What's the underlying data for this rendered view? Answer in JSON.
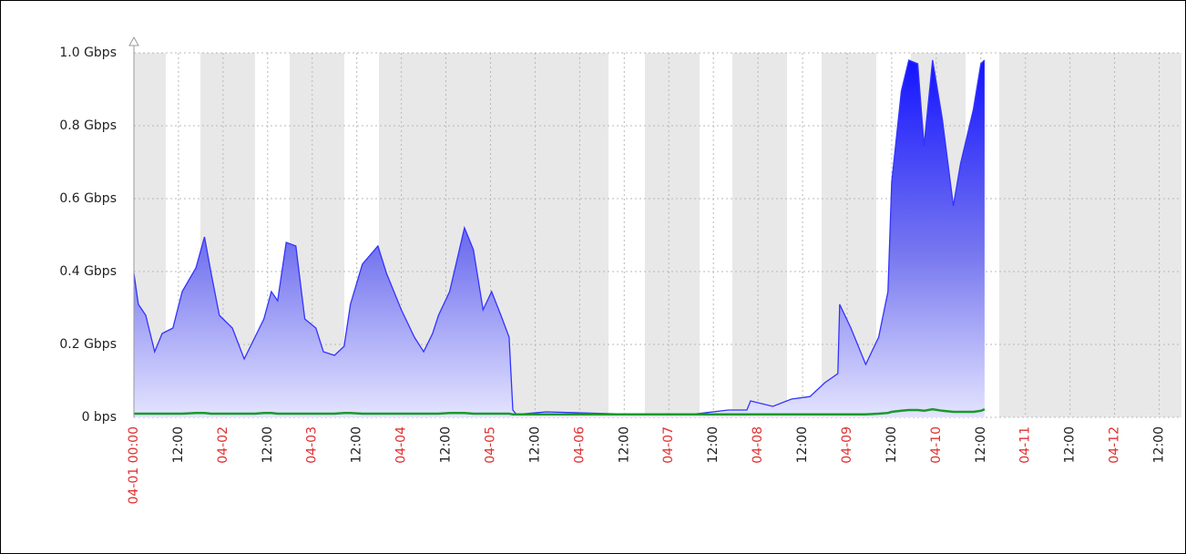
{
  "chart_data": {
    "type": "area",
    "x": [
      0,
      1.2,
      3.2,
      5.6,
      7.6,
      10.5,
      13,
      16.7,
      19,
      20.8,
      23,
      26.5,
      29.7,
      32.6,
      35,
      37,
      38.7,
      41,
      43.6,
      46,
      49,
      51,
      54,
      56.6,
      58.3,
      61.5,
      65.7,
      68,
      72,
      75.5,
      78,
      80.4,
      82,
      85,
      89,
      91.4,
      94,
      96.3,
      98.8,
      101,
      102,
      103,
      111,
      135.5,
      150,
      160,
      165,
      166,
      172,
      177,
      182,
      186,
      189.5,
      190,
      193,
      197,
      200.5,
      203,
      204,
      206.6,
      208.6,
      211,
      212.7,
      215,
      217.6,
      220.6,
      222.5,
      226,
      228,
      229
    ],
    "series": [
      {
        "color": "#3333ff",
        "fill": true,
        "values": [
          0.395,
          0.31,
          0.28,
          0.18,
          0.23,
          0.245,
          0.345,
          0.41,
          0.495,
          0.395,
          0.28,
          0.245,
          0.16,
          0.22,
          0.27,
          0.345,
          0.32,
          0.48,
          0.47,
          0.27,
          0.245,
          0.18,
          0.17,
          0.195,
          0.31,
          0.42,
          0.47,
          0.395,
          0.295,
          0.22,
          0.18,
          0.23,
          0.28,
          0.345,
          0.52,
          0.46,
          0.295,
          0.345,
          0.28,
          0.22,
          0.02,
          0.008,
          0.015,
          0.008,
          0.008,
          0.02,
          0.02,
          0.045,
          0.03,
          0.05,
          0.057,
          0.095,
          0.12,
          0.31,
          0.245,
          0.145,
          0.22,
          0.345,
          0.645,
          0.895,
          0.98,
          0.97,
          0.745,
          0.98,
          0.82,
          0.58,
          0.695,
          0.845,
          0.97,
          0.98
        ]
      },
      {
        "color": "#1a9a2a",
        "fill": false,
        "values": [
          0.01,
          0.01,
          0.01,
          0.01,
          0.01,
          0.01,
          0.01,
          0.012,
          0.012,
          0.01,
          0.01,
          0.01,
          0.01,
          0.01,
          0.012,
          0.012,
          0.01,
          0.01,
          0.01,
          0.01,
          0.01,
          0.01,
          0.01,
          0.012,
          0.012,
          0.01,
          0.01,
          0.01,
          0.01,
          0.01,
          0.01,
          0.01,
          0.01,
          0.012,
          0.012,
          0.01,
          0.01,
          0.01,
          0.01,
          0.01,
          0.008,
          0.008,
          0.008,
          0.008,
          0.008,
          0.008,
          0.008,
          0.008,
          0.008,
          0.008,
          0.008,
          0.008,
          0.008,
          0.008,
          0.008,
          0.008,
          0.01,
          0.012,
          0.015,
          0.018,
          0.02,
          0.02,
          0.018,
          0.022,
          0.018,
          0.015,
          0.015,
          0.015,
          0.018,
          0.022
        ]
      }
    ],
    "xlim": [
      0,
      282
    ],
    "ylim": [
      0,
      1
    ],
    "xticks": [
      {
        "value": 0,
        "label": "04-01 00:00"
      },
      {
        "value": 12,
        "label": "12:00"
      },
      {
        "value": 24,
        "label": "04-02"
      },
      {
        "value": 36,
        "label": "12:00"
      },
      {
        "value": 48,
        "label": "04-03"
      },
      {
        "value": 60,
        "label": "12:00"
      },
      {
        "value": 72,
        "label": "04-04"
      },
      {
        "value": 84,
        "label": "12:00"
      },
      {
        "value": 96,
        "label": "04-05"
      },
      {
        "value": 108,
        "label": "12:00"
      },
      {
        "value": 120,
        "label": "04-06"
      },
      {
        "value": 132,
        "label": "12:00"
      },
      {
        "value": 144,
        "label": "04-07"
      },
      {
        "value": 156,
        "label": "12:00"
      },
      {
        "value": 168,
        "label": "04-08"
      },
      {
        "value": 180,
        "label": "12:00"
      },
      {
        "value": 192,
        "label": "04-09"
      },
      {
        "value": 204,
        "label": "12:00"
      },
      {
        "value": 216,
        "label": "04-10"
      },
      {
        "value": 228,
        "label": "12:00"
      },
      {
        "value": 240,
        "label": "04-11"
      },
      {
        "value": 252,
        "label": "12:00"
      },
      {
        "value": 264,
        "label": "04-12"
      },
      {
        "value": 276,
        "label": "12:00"
      }
    ],
    "yticks": [
      {
        "value": 0,
        "label": "0 bps"
      },
      {
        "value": 0.2,
        "label": "0.2 Gbps"
      },
      {
        "value": 0.4,
        "label": "0.4 Gbps"
      },
      {
        "value": 0.6,
        "label": "0.6 Gbps"
      },
      {
        "value": 0.8,
        "label": "0.8 Gbps"
      },
      {
        "value": 1,
        "label": "1.0 Gbps"
      }
    ],
    "grid": true
  }
}
